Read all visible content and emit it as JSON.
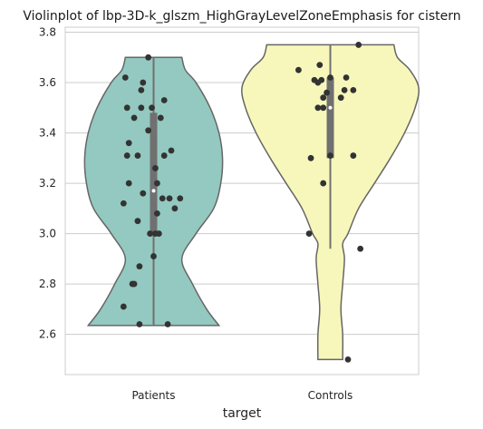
{
  "chart_data": {
    "type": "violin",
    "title": "Violinplot of lbp-3D-k_glszm_HighGrayLevelZoneEmphasis for cistern",
    "xlabel": "target",
    "ylabel": "",
    "categories": [
      "Patients",
      "Controls"
    ],
    "ylim": [
      2.44,
      3.82
    ],
    "yticks": [
      2.6,
      2.8,
      3.0,
      3.2,
      3.4,
      3.6,
      3.8
    ],
    "ytick_labels": [
      "2.6",
      "2.8",
      "3.0",
      "3.2",
      "3.4",
      "3.6",
      "3.8"
    ],
    "grid": "horizontal",
    "colors": {
      "Patients": "#93c9c0",
      "Controls": "#f7f7bb",
      "outline": "#666666",
      "points": "#333333",
      "box": "#707070",
      "grid": "#cccccc",
      "axes": "#cccccc"
    },
    "series": [
      {
        "name": "Patients",
        "range": [
          2.635,
          3.7
        ],
        "quartiles": [
          3.0,
          3.17,
          3.48
        ],
        "whiskers": [
          2.635,
          3.7
        ],
        "density": [
          [
            2.635,
            0.37
          ],
          [
            2.7,
            0.3
          ],
          [
            2.8,
            0.22
          ],
          [
            2.9,
            0.16
          ],
          [
            3.0,
            0.24
          ],
          [
            3.1,
            0.34
          ],
          [
            3.2,
            0.38
          ],
          [
            3.3,
            0.39
          ],
          [
            3.4,
            0.37
          ],
          [
            3.5,
            0.32
          ],
          [
            3.6,
            0.24
          ],
          [
            3.65,
            0.18
          ],
          [
            3.7,
            0.16
          ]
        ],
        "points": [
          3.7,
          3.62,
          3.6,
          3.57,
          3.53,
          3.5,
          3.5,
          3.5,
          3.46,
          3.46,
          3.41,
          3.36,
          3.33,
          3.31,
          3.31,
          3.31,
          3.26,
          3.2,
          3.2,
          3.16,
          3.14,
          3.14,
          3.14,
          3.12,
          3.1,
          3.08,
          3.05,
          3.0,
          3.0,
          3.0,
          2.91,
          2.87,
          2.8,
          2.8,
          2.71,
          2.64,
          2.64
        ],
        "jitter": [
          -0.03,
          -0.16,
          -0.06,
          -0.07,
          0.06,
          -0.15,
          -0.07,
          -0.01,
          0.04,
          -0.11,
          -0.03,
          -0.14,
          0.1,
          -0.15,
          -0.09,
          0.06,
          0.01,
          -0.14,
          0.02,
          -0.06,
          0.05,
          0.09,
          0.15,
          -0.17,
          0.12,
          0.02,
          -0.09,
          -0.02,
          0.01,
          0.03,
          0.0,
          -0.08,
          -0.12,
          -0.11,
          -0.17,
          -0.08,
          0.08
        ]
      },
      {
        "name": "Controls",
        "range": [
          2.5,
          3.75
        ],
        "quartiles": [
          3.3,
          3.5,
          3.62
        ],
        "whiskers": [
          2.94,
          3.75
        ],
        "density": [
          [
            2.5,
            0.07
          ],
          [
            2.6,
            0.07
          ],
          [
            2.7,
            0.06
          ],
          [
            2.8,
            0.07
          ],
          [
            2.9,
            0.08
          ],
          [
            2.96,
            0.07
          ],
          [
            3.0,
            0.1
          ],
          [
            3.1,
            0.16
          ],
          [
            3.2,
            0.25
          ],
          [
            3.3,
            0.34
          ],
          [
            3.4,
            0.42
          ],
          [
            3.5,
            0.48
          ],
          [
            3.58,
            0.5
          ],
          [
            3.65,
            0.45
          ],
          [
            3.7,
            0.38
          ],
          [
            3.75,
            0.36
          ]
        ],
        "points": [
          3.75,
          3.67,
          3.65,
          3.62,
          3.62,
          3.61,
          3.61,
          3.6,
          3.57,
          3.57,
          3.56,
          3.54,
          3.54,
          3.5,
          3.5,
          3.31,
          3.31,
          3.3,
          3.2,
          3.0,
          2.94,
          2.5
        ],
        "jitter": [
          0.16,
          -0.06,
          -0.18,
          0.09,
          0.0,
          -0.09,
          -0.05,
          -0.07,
          0.08,
          0.13,
          -0.02,
          0.06,
          -0.04,
          -0.07,
          -0.04,
          0.0,
          0.13,
          -0.11,
          -0.04,
          -0.12,
          0.17,
          0.1
        ]
      }
    ]
  }
}
